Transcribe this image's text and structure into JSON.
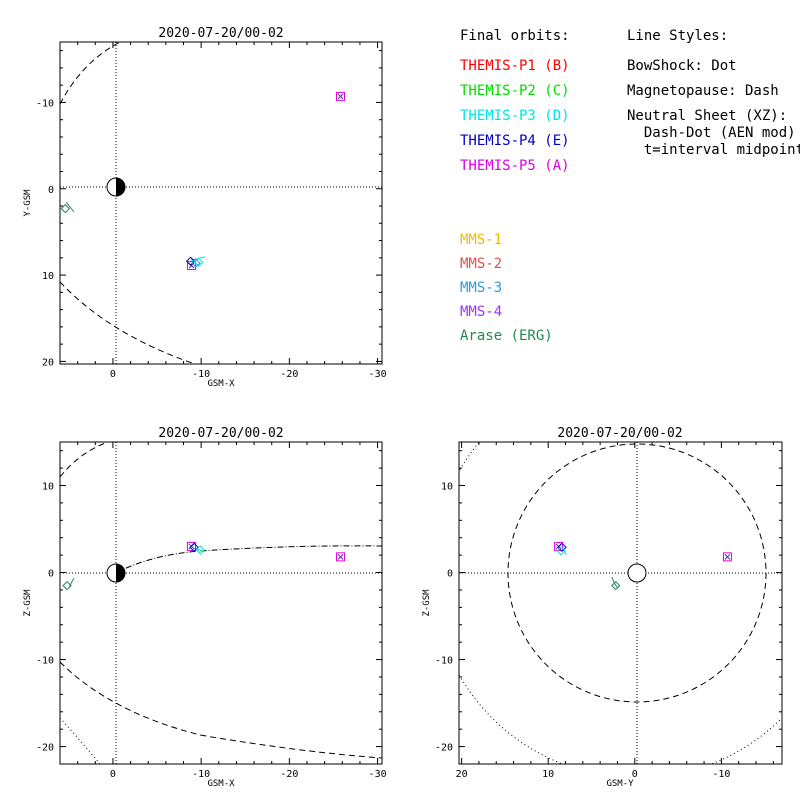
{
  "legend": {
    "final_orbits_heading": "Final orbits:",
    "line_styles_heading": "Line Styles:",
    "spacecraft": [
      {
        "label": "THEMIS-P1 (B)",
        "color": "#ff0000"
      },
      {
        "label": "THEMIS-P2 (C)",
        "color": "#00dd00"
      },
      {
        "label": "THEMIS-P3 (D)",
        "color": "#00e5e5"
      },
      {
        "label": "THEMIS-P4 (E)",
        "color": "#0000cc"
      },
      {
        "label": "THEMIS-P5 (A)",
        "color": "#e000e0"
      }
    ],
    "line_styles": [
      "BowShock: Dot",
      "Magnetopause: Dash",
      "Neutral Sheet (XZ):",
      "  Dash-Dot (AEN mod)",
      "  t=interval midpoint"
    ],
    "other_spacecraft": [
      {
        "label": "MMS-1",
        "color": "#f5b800"
      },
      {
        "label": "MMS-2",
        "color": "#e05050"
      },
      {
        "label": "MMS-3",
        "color": "#3399dd"
      },
      {
        "label": "MMS-4",
        "color": "#9933ff"
      },
      {
        "label": "Arase (ERG)",
        "color": "#228855"
      }
    ]
  },
  "chart_data": [
    {
      "type": "scatter",
      "title": "2020-07-20/00-02",
      "xlabel": "GSM-X",
      "ylabel": "Y-GSM",
      "xlim": [
        6,
        -30.5
      ],
      "ylim": [
        20.3,
        -17
      ],
      "xticks": [
        0,
        -10,
        -20,
        -30
      ],
      "yticks": [
        -10,
        0,
        10,
        20
      ],
      "series": [
        {
          "color": "#e000e0",
          "points": [
            [
              -25.8,
              -10.7
            ],
            [
              -8.9,
              8.9
            ]
          ]
        },
        {
          "color": "#0000cc",
          "points": [
            [
              -8.8,
              8.4
            ]
          ]
        },
        {
          "color": "#00e5e5",
          "points": [
            [
              -9.7,
              8.5
            ]
          ]
        },
        {
          "color": "#3399dd",
          "points": [
            [
              -9.4,
              8.6
            ]
          ]
        },
        {
          "color": "#228855",
          "points": [
            [
              5.4,
              2.3
            ]
          ]
        }
      ]
    },
    {
      "type": "scatter",
      "title": "2020-07-20/00-02",
      "xlabel": "GSM-X",
      "ylabel": "Z-GSM",
      "xlim": [
        6,
        -30.5
      ],
      "ylim": [
        -22,
        15
      ],
      "xticks": [
        0,
        -10,
        -20,
        -30
      ],
      "yticks": [
        10,
        0,
        -10,
        -20
      ],
      "series": [
        {
          "color": "#e000e0",
          "points": [
            [
              -25.8,
              1.8
            ],
            [
              -8.9,
              3.0
            ]
          ]
        },
        {
          "color": "#0000cc",
          "points": [
            [
              -9.2,
              2.9
            ]
          ]
        },
        {
          "color": "#00e5e5",
          "points": [
            [
              -9.9,
              2.6
            ]
          ]
        },
        {
          "color": "#228855",
          "points": [
            [
              5.2,
              -1.5
            ]
          ]
        }
      ]
    },
    {
      "type": "scatter",
      "title": "2020-07-20/00-02",
      "xlabel": "GSM-Y",
      "ylabel": "Z-GSM",
      "xlim": [
        20.3,
        -17
      ],
      "ylim": [
        -22,
        15
      ],
      "xticks": [
        20,
        10,
        0,
        -10
      ],
      "yticks": [
        10,
        0,
        -10,
        -20
      ],
      "series": [
        {
          "color": "#e000e0",
          "points": [
            [
              -10.7,
              1.8
            ],
            [
              8.8,
              3.0
            ]
          ]
        },
        {
          "color": "#0000cc",
          "points": [
            [
              8.4,
              2.9
            ]
          ]
        },
        {
          "color": "#00e5e5",
          "points": [
            [
              8.5,
              2.5
            ]
          ]
        },
        {
          "color": "#228855",
          "points": [
            [
              2.2,
              -1.5
            ]
          ]
        }
      ]
    }
  ]
}
